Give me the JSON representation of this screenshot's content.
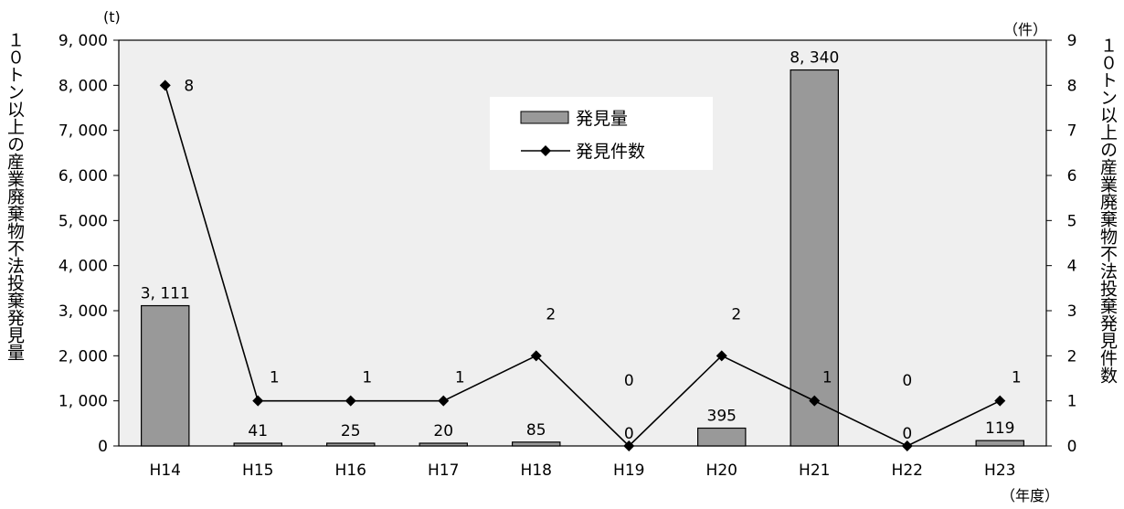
{
  "chart_data": {
    "type": "bar+line",
    "categories": [
      "H14",
      "H15",
      "H16",
      "H17",
      "H18",
      "H19",
      "H20",
      "H21",
      "H22",
      "H23"
    ],
    "series": [
      {
        "name": "発見量",
        "type": "bar",
        "axis": "left",
        "values": [
          3111,
          41,
          25,
          20,
          85,
          0,
          395,
          8340,
          0,
          119
        ],
        "labels": [
          "3, 111",
          "41",
          "25",
          "20",
          "85",
          "",
          "395",
          "8, 340",
          "",
          ""
        ],
        "color": "#999999"
      },
      {
        "name": "発見件数",
        "type": "line",
        "axis": "right",
        "values": [
          8,
          1,
          1,
          1,
          2,
          0,
          2,
          1,
          0,
          1
        ],
        "labels": [
          "8",
          "1",
          "1",
          "1",
          "2",
          "0",
          "2",
          "1",
          "0",
          "1"
        ],
        "color": "#000000",
        "marker": "diamond"
      }
    ],
    "bar_label_extra": {
      "H19": "0",
      "H22": "0",
      "H23": "119"
    },
    "y_left": {
      "label": "１０トン以上の産業廃棄物不法投棄発見量",
      "unit": "(t)",
      "ylim": [
        0,
        9000
      ],
      "ticks": [
        "0",
        "1, 000",
        "2, 000",
        "3, 000",
        "4, 000",
        "5, 000",
        "6, 000",
        "7, 000",
        "8, 000",
        "9, 000"
      ]
    },
    "y_right": {
      "label": "１０トン以上の産業廃棄物不法投棄発見件数",
      "unit": "（件）",
      "ylim": [
        0,
        9
      ],
      "ticks": [
        "0",
        "1",
        "2",
        "3",
        "4",
        "5",
        "6",
        "7",
        "8",
        "9"
      ]
    },
    "x_unit": "（年度）",
    "legend_position": "upper-center",
    "plot_background": "#efefef"
  }
}
